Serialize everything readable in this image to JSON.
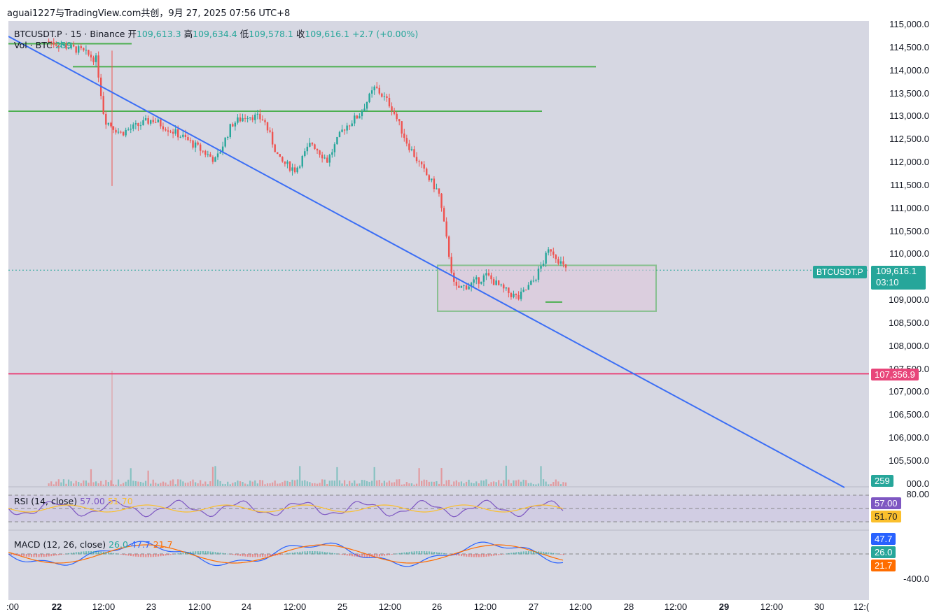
{
  "header": {
    "watermark": "aguai1227与TradingView.com共创，9月 27, 2025 07:56 UTC+8"
  },
  "symbol_legend": {
    "symbol": "BTCUSDT.P · 15 · Binance",
    "open_label": "开",
    "open": "109,613.3",
    "high_label": "高",
    "high": "109,634.4",
    "low_label": "低",
    "low": "109,578.1",
    "close_label": "收",
    "close": "109,616.1",
    "change": "+2.7 (+0.00%)"
  },
  "volume_legend": {
    "label": "Vol · BTC",
    "value": "259"
  },
  "rsi_legend": {
    "label": "RSI (14, close)",
    "value1": "57.00",
    "value2": "51.70"
  },
  "macd_legend": {
    "label": "MACD (12, 26, close)",
    "value1": "26.0",
    "value2": "47.7",
    "value3": "21.7"
  },
  "price_axis": {
    "labels": [
      "115,000.0",
      "114,500.0",
      "114,000.0",
      "113,500.0",
      "113,000.0",
      "112,500.0",
      "112,000.0",
      "111,500.0",
      "111,000.0",
      "110,500.0",
      "110,000.0",
      "109,000.0",
      "108,500.0",
      "108,000.0",
      "107,500.0",
      "107,000.0",
      "106,500.0",
      "106,000.0",
      "105,500.0",
      "80.00",
      "-400.0"
    ],
    "partial_label": "000.0"
  },
  "current_price": {
    "symbol_tag": "BTCUSDT.P",
    "price": "109,616.1",
    "countdown": "03:10"
  },
  "level_tag": {
    "price": "107,356.9"
  },
  "volume_tag": "259",
  "rsi_tags": {
    "rsi": "57.00",
    "ma": "51.70"
  },
  "macd_tags": {
    "macd": "47.7",
    "hist": "26.0",
    "signal": "21.7"
  },
  "time_axis": [
    ":00",
    "22",
    "12:00",
    "23",
    "12:00",
    "24",
    "12:00",
    "25",
    "12:00",
    "26",
    "12:00",
    "27",
    "12:00",
    "28",
    "12:00",
    "29",
    "12:00",
    "30",
    "12:("
  ],
  "colors": {
    "up": "#26a69a",
    "down": "#ef5350",
    "trendline": "#3b6ef5",
    "level_line": "#e8457a",
    "zone": "#4caf50",
    "rsi": "#7e57c2",
    "rsi_ma": "#fbc02d",
    "macd": "#2962ff",
    "signal": "#ff6d00",
    "background": "#d6d7e2"
  },
  "chart_data": {
    "type": "candlestick",
    "symbol": "BTCUSDT.P",
    "interval": "15",
    "exchange": "Binance",
    "ohlc_last": {
      "open": 109613.3,
      "high": 109634.4,
      "low": 109578.1,
      "close": 109616.1
    },
    "price_axis_range": [
      104900,
      115100
    ],
    "approx_close_path": [
      {
        "t": "21 22:00",
        "p": 114600
      },
      {
        "t": "22 06:00",
        "p": 114400
      },
      {
        "t": "22 10:00",
        "p": 114200
      },
      {
        "t": "22 12:00",
        "p": 112900
      },
      {
        "t": "22 16:00",
        "p": 112600
      },
      {
        "t": "23 00:00",
        "p": 112900
      },
      {
        "t": "23 08:00",
        "p": 112500
      },
      {
        "t": "23 16:00",
        "p": 112000
      },
      {
        "t": "23 20:00",
        "p": 112800
      },
      {
        "t": "24 00:00",
        "p": 113000
      },
      {
        "t": "24 04:00",
        "p": 112900
      },
      {
        "t": "24 08:00",
        "p": 112000
      },
      {
        "t": "24 12:00",
        "p": 111800
      },
      {
        "t": "24 16:00",
        "p": 112400
      },
      {
        "t": "24 20:00",
        "p": 112000
      },
      {
        "t": "25 00:00",
        "p": 112700
      },
      {
        "t": "25 04:00",
        "p": 113000
      },
      {
        "t": "25 08:00",
        "p": 113600
      },
      {
        "t": "25 12:00",
        "p": 113200
      },
      {
        "t": "25 16:00",
        "p": 112400
      },
      {
        "t": "25 20:00",
        "p": 111800
      },
      {
        "t": "26 00:00",
        "p": 111300
      },
      {
        "t": "26 04:00",
        "p": 109200
      },
      {
        "t": "26 08:00",
        "p": 109300
      },
      {
        "t": "26 12:00",
        "p": 109500
      },
      {
        "t": "26 16:00",
        "p": 109200
      },
      {
        "t": "26 20:00",
        "p": 109000
      },
      {
        "t": "27 00:00",
        "p": 109400
      },
      {
        "t": "27 04:00",
        "p": 110100
      },
      {
        "t": "27 07:56",
        "p": 109616
      }
    ],
    "horizontal_levels": [
      114550,
      114050,
      113080,
      107356.9
    ],
    "range_box": {
      "top": 109720,
      "bottom": 108720
    }
  }
}
